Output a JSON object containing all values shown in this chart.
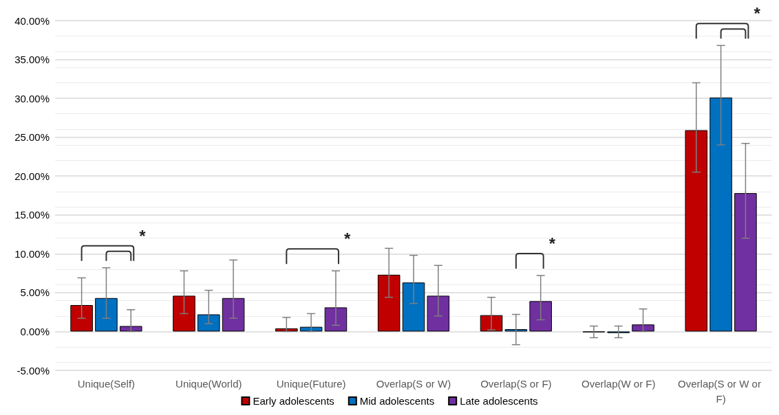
{
  "chart_data": {
    "type": "bar",
    "categories": [
      "Unique(Self)",
      "Unique(World)",
      "Unique(Future)",
      "Overlap(S or W)",
      "Overlap(S or F)",
      "Overlap(W or F)",
      "Overlap(S or W or F)"
    ],
    "series": [
      {
        "name": "Early adolescents",
        "color": "#c00000",
        "values": [
          3.4,
          4.6,
          0.4,
          7.3,
          2.1,
          -0.1,
          25.9
        ],
        "errors": [
          [
            1.7,
            6.9
          ],
          [
            2.3,
            7.8
          ],
          [
            0,
            1.8
          ],
          [
            4.4,
            10.7
          ],
          [
            0.2,
            4.4
          ],
          [
            -0.8,
            0.7
          ],
          [
            20.5,
            32.0
          ]
        ]
      },
      {
        "name": "Mid adolescents",
        "color": "#0070c0",
        "values": [
          4.3,
          2.2,
          0.6,
          6.3,
          0.3,
          -0.2,
          30.1
        ],
        "errors": [
          [
            1.7,
            8.2
          ],
          [
            1.0,
            5.3
          ],
          [
            0,
            2.3
          ],
          [
            3.6,
            9.8
          ],
          [
            -1.7,
            2.2
          ],
          [
            -0.8,
            0.7
          ],
          [
            24.0,
            36.8
          ]
        ]
      },
      {
        "name": "Late adolescents",
        "color": "#7030a0",
        "values": [
          0.7,
          4.3,
          3.1,
          4.6,
          3.9,
          0.9,
          17.8
        ],
        "errors": [
          [
            0,
            2.8
          ],
          [
            1.7,
            9.2
          ],
          [
            0.8,
            7.8
          ],
          [
            2.0,
            8.5
          ],
          [
            1.5,
            7.2
          ],
          [
            0,
            2.9
          ],
          [
            12.0,
            24.2
          ]
        ]
      }
    ],
    "ylim": [
      -5,
      40
    ],
    "yticks": [
      {
        "value": -5,
        "label": "-5.00%"
      },
      {
        "value": 0,
        "label": "0.00%"
      },
      {
        "value": 5,
        "label": "5.00%"
      },
      {
        "value": 10,
        "label": "10.00%"
      },
      {
        "value": 15,
        "label": "15.00%"
      },
      {
        "value": 20,
        "label": "20.00%"
      },
      {
        "value": 25,
        "label": "25.00%"
      },
      {
        "value": 30,
        "label": "30.00%"
      },
      {
        "value": 35,
        "label": "35.00%"
      },
      {
        "value": 40,
        "label": "40.00%"
      }
    ],
    "annotations": [
      "*",
      "*",
      "*",
      "*"
    ],
    "grid": "y",
    "legend": "bottom"
  }
}
